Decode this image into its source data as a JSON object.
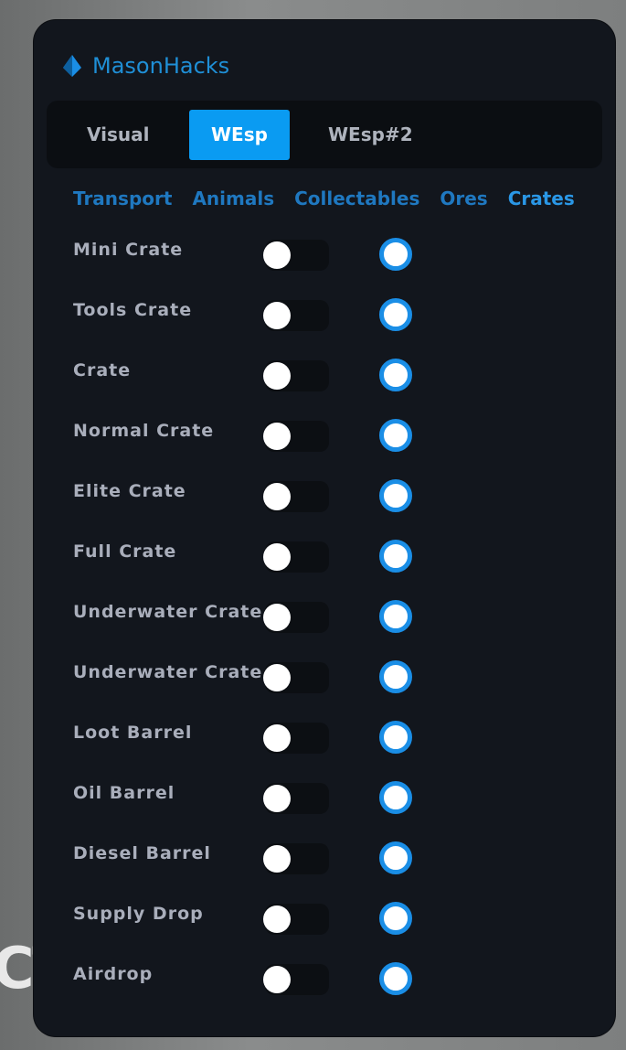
{
  "background_text": "CT",
  "app": {
    "title": "MasonHacks",
    "accent": "#0a9bf2"
  },
  "tabs": [
    {
      "label": "Visual",
      "active": false
    },
    {
      "label": "WEsp",
      "active": true
    },
    {
      "label": "WEsp#2",
      "active": false
    }
  ],
  "subtabs": [
    {
      "label": "Transport"
    },
    {
      "label": "Animals"
    },
    {
      "label": "Collectables"
    },
    {
      "label": "Ores"
    },
    {
      "label": "Crates",
      "active": true
    }
  ],
  "items": [
    {
      "label": "Mini Crate",
      "enabled": false,
      "color": "#ffffff"
    },
    {
      "label": "Tools Crate",
      "enabled": false,
      "color": "#ffffff"
    },
    {
      "label": "Crate",
      "enabled": false,
      "color": "#ffffff"
    },
    {
      "label": "Normal Crate",
      "enabled": false,
      "color": "#ffffff"
    },
    {
      "label": "Elite Crate",
      "enabled": false,
      "color": "#ffffff"
    },
    {
      "label": "Full Crate",
      "enabled": false,
      "color": "#ffffff"
    },
    {
      "label": "Underwater Crate",
      "enabled": false,
      "color": "#ffffff"
    },
    {
      "label": "Underwater Crate",
      "enabled": false,
      "color": "#ffffff"
    },
    {
      "label": "Loot Barrel",
      "enabled": false,
      "color": "#ffffff"
    },
    {
      "label": "Oil Barrel",
      "enabled": false,
      "color": "#ffffff"
    },
    {
      "label": "Diesel Barrel",
      "enabled": false,
      "color": "#ffffff"
    },
    {
      "label": "Supply Drop",
      "enabled": false,
      "color": "#ffffff"
    },
    {
      "label": "Airdrop",
      "enabled": false,
      "color": "#ffffff"
    }
  ]
}
